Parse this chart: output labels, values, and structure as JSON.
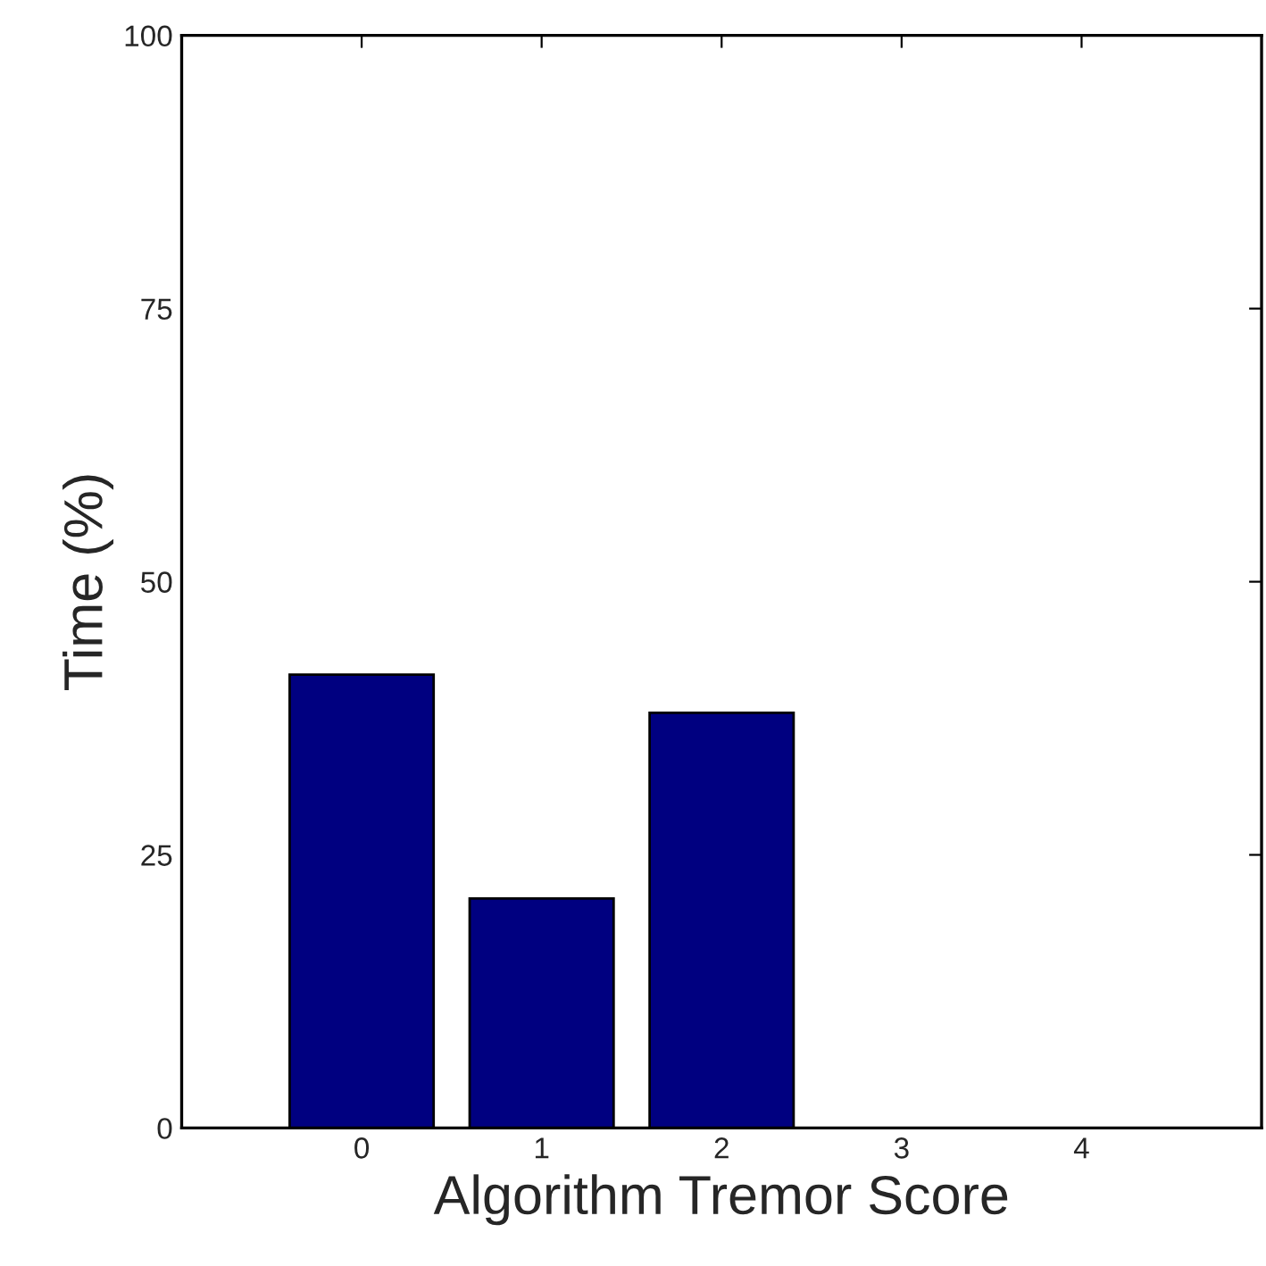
{
  "chart_data": {
    "type": "bar",
    "categories": [
      "0",
      "1",
      "2",
      "3",
      "4"
    ],
    "values": [
      41.5,
      21.0,
      38.0,
      0,
      0
    ],
    "color": "#000080",
    "xlabel": "Algorithm Tremor Score",
    "ylabel": "Time (%)",
    "ylim": [
      0,
      100
    ],
    "yticks": [
      0,
      25,
      50,
      75,
      100
    ],
    "grid": false
  }
}
